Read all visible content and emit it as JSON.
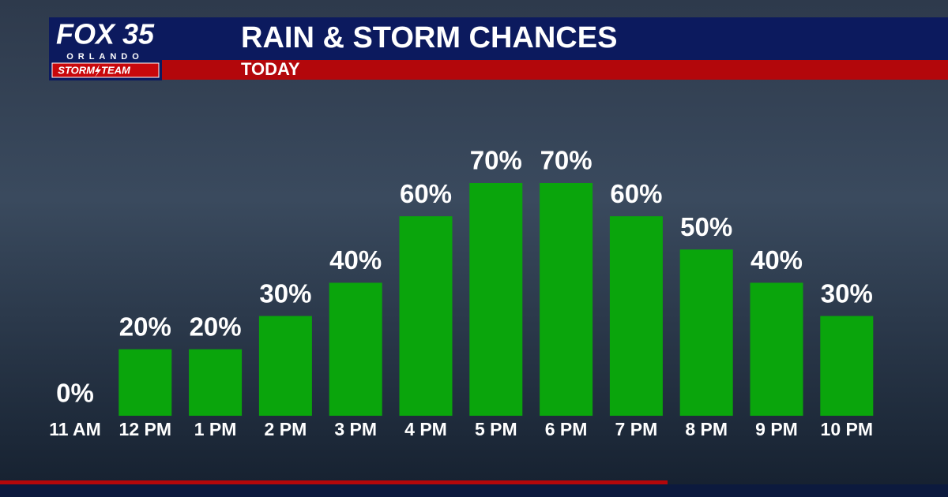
{
  "logo": {
    "brand": "FOX 35",
    "city": "ORLANDO",
    "team_left": "STORM",
    "team_right": "TEAM"
  },
  "chart_data": {
    "type": "bar",
    "title": "RAIN & STORM CHANCES",
    "subtitle": "TODAY",
    "categories": [
      "11 AM",
      "12 PM",
      "1 PM",
      "2 PM",
      "3 PM",
      "4 PM",
      "5 PM",
      "6 PM",
      "7 PM",
      "8 PM",
      "9 PM",
      "10 PM"
    ],
    "values": [
      0,
      20,
      20,
      30,
      40,
      60,
      70,
      70,
      60,
      50,
      40,
      30
    ],
    "value_labels": [
      "0%",
      "20%",
      "20%",
      "30%",
      "40%",
      "60%",
      "70%",
      "70%",
      "60%",
      "50%",
      "40%",
      "30%"
    ],
    "color": "#0aa50c"
  }
}
